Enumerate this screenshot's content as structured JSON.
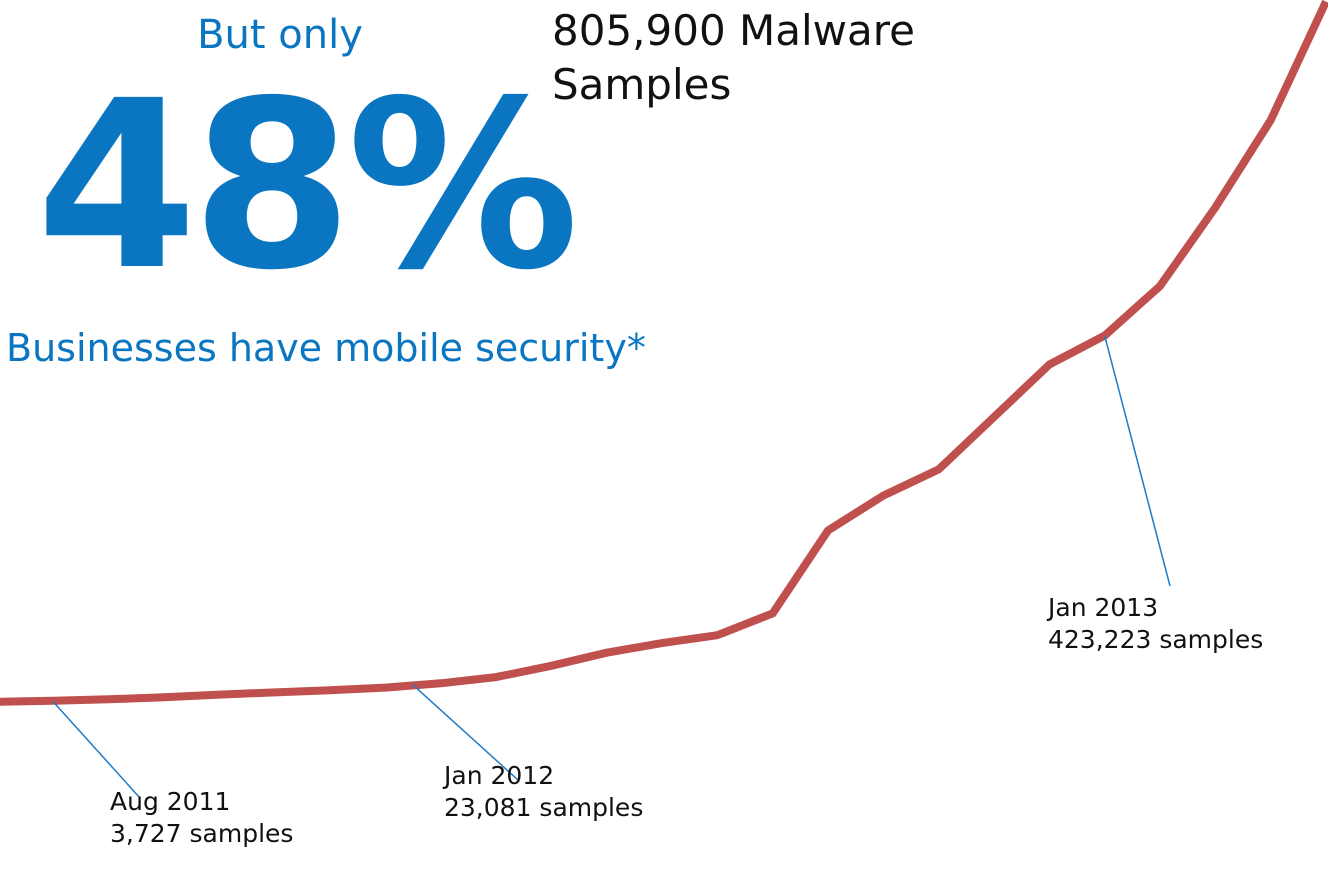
{
  "left_panel": {
    "intro": "But only",
    "stat": "48%",
    "caption": "Businesses have mobile security*"
  },
  "headline": {
    "line1": "805,900 Malware",
    "line2": "Samples"
  },
  "colors": {
    "accent_blue": "#0a76c2",
    "line_red": "#c0504d",
    "leader_blue": "#1f7ac8",
    "text_dark": "#111111"
  },
  "chart_data": {
    "type": "line",
    "x": [
      0,
      2,
      4,
      6,
      8,
      10,
      12,
      14,
      16,
      18,
      20,
      22,
      24,
      26,
      28,
      30,
      32,
      34,
      36,
      38,
      40,
      42,
      44,
      46,
      48
    ],
    "values": [
      3727,
      5000,
      6600,
      8900,
      12000,
      14500,
      17000,
      20000,
      25000,
      32000,
      45000,
      60000,
      71000,
      80000,
      105000,
      200000,
      240000,
      270000,
      330000,
      390000,
      423223,
      480000,
      570000,
      670000,
      805900
    ],
    "xlim": [
      0,
      48
    ],
    "ylim": [
      -40000,
      810000
    ],
    "grid": false,
    "annotations": [
      {
        "label": "Aug 2011",
        "detail": "3,727 samples",
        "x": 2,
        "value": 3727
      },
      {
        "label": "Jan 2012",
        "detail": "23,081 samples",
        "x": 15,
        "value": 23081
      },
      {
        "label": "Jan 2013",
        "detail": "423,223 samples",
        "x": 40,
        "value": 423223
      }
    ]
  }
}
